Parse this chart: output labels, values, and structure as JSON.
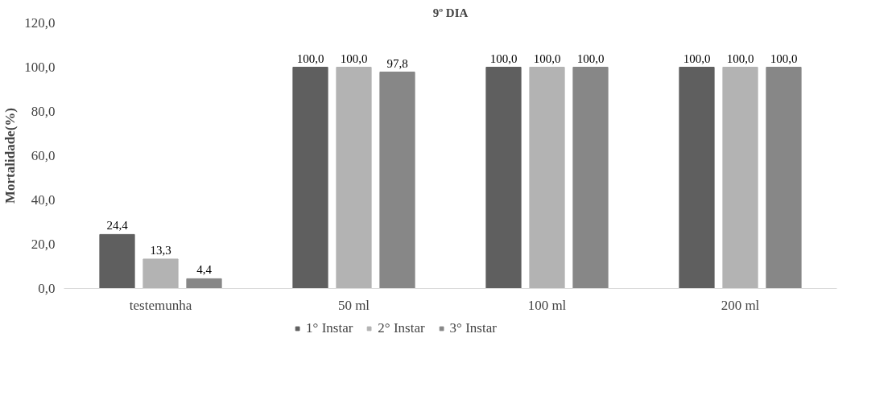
{
  "chart_data": {
    "type": "bar",
    "title": "9º DIA",
    "ylabel": "Mortalidade(%)",
    "categories": [
      "testemunha",
      "50 ml",
      "100 ml",
      "200 ml"
    ],
    "series": [
      {
        "name": "1° Instar",
        "color": "#5f5f5f",
        "values": [
          24.4,
          100.0,
          100.0,
          100.0
        ],
        "value_labels": [
          "24,4",
          "100,0",
          "100,0",
          "100,0"
        ]
      },
      {
        "name": "2° Instar",
        "color": "#b3b3b3",
        "values": [
          13.3,
          100.0,
          100.0,
          100.0
        ],
        "value_labels": [
          "13,3",
          "100,0",
          "100,0",
          "100,0"
        ]
      },
      {
        "name": "3° Instar",
        "color": "#878787",
        "values": [
          4.4,
          97.8,
          100.0,
          100.0
        ],
        "value_labels": [
          "4,4",
          "97,8",
          "100,0",
          "100,0"
        ]
      }
    ],
    "ylim": [
      0,
      120
    ],
    "yticks": [
      {
        "value": 0,
        "label": "0,0"
      },
      {
        "value": 20,
        "label": "20,0"
      },
      {
        "value": 40,
        "label": "40,0"
      },
      {
        "value": 60,
        "label": "60,0"
      },
      {
        "value": 80,
        "label": "80,0"
      },
      {
        "value": 100,
        "label": "100,0"
      },
      {
        "value": 120,
        "label": "120,0"
      }
    ],
    "grid": false,
    "legend": "bottom"
  }
}
